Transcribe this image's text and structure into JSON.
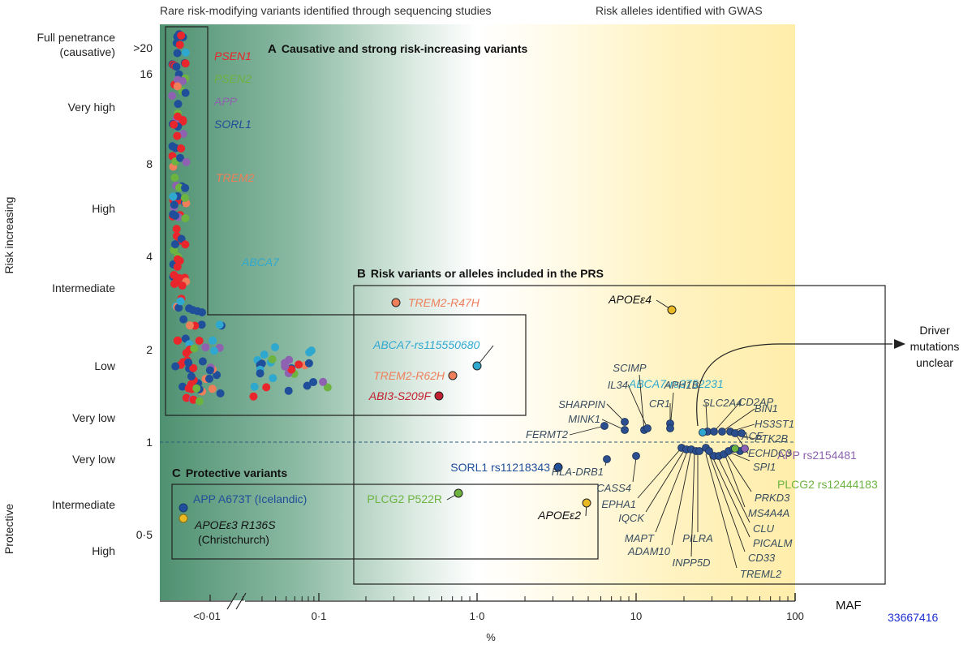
{
  "chart_data": {
    "type": "scatter",
    "xlabel": "%",
    "x_axis_label_right": "MAF",
    "x_ticks": [
      "<0·01",
      "0·1",
      "1·0",
      "10",
      "100"
    ],
    "y_left_label_top": "Risk increasing",
    "y_left_label_bottom": "Protective",
    "y_ticks": [
      "0·5",
      "1",
      "2",
      "4",
      "8",
      "16",
      ">20"
    ],
    "y_categories": [
      "Full penetrance\n(causative)",
      "Very high",
      "High",
      "Intermediate",
      "Low",
      "Very low",
      "Very low",
      "Intermediate",
      "High"
    ],
    "header_left": "Rare risk-modifying variants identified through sequencing studies",
    "header_right": "Risk alleles identified with GWAS",
    "panel_a": {
      "letter": "A",
      "title": "Causative and strong risk-increasing variants"
    },
    "panel_b": {
      "letter": "B",
      "title": "Risk variants or alleles included in the PRS"
    },
    "panel_c": {
      "letter": "C",
      "title": "Protective variants"
    },
    "gene_legend": [
      {
        "name": "PSEN1",
        "color": "#e8262b"
      },
      {
        "name": "PSEN2",
        "color": "#6cb33f"
      },
      {
        "name": "APP",
        "color": "#8e62b0"
      },
      {
        "name": "SORL1",
        "color": "#1f4e9a"
      },
      {
        "name": "TREM2",
        "color": "#ef7f5b"
      },
      {
        "name": "ABCA7",
        "color": "#2ea8cf"
      }
    ],
    "labeled_variants": [
      {
        "label": "TREM2-R47H",
        "x": 0.3,
        "y": 2.7,
        "color": "#ef7f5b"
      },
      {
        "label": "ABCA7-rs115550680",
        "x": 1.0,
        "y": 1.75,
        "color": "#2ea8cf"
      },
      {
        "label": "TREM2-R62H",
        "x": 0.7,
        "y": 1.65,
        "color": "#ef7f5b"
      },
      {
        "label": "ABI3-S209F",
        "x": 0.55,
        "y": 1.42,
        "color": "#c22030"
      },
      {
        "label": "APOEε4",
        "x": 16.5,
        "y": 2.6,
        "color": "#e8b923"
      },
      {
        "label": "SORL1 rs11218343",
        "x": 3.2,
        "y": 0.79,
        "color": "#1f4e9a"
      },
      {
        "label": "PLCG2 P522R",
        "x": 0.75,
        "y": 0.67,
        "color": "#6cb33f"
      },
      {
        "label": "APOEε2",
        "x": 4.9,
        "y": 0.62,
        "color": "#e8b923"
      },
      {
        "label": "ABCA7-rs3752231",
        "x": 25,
        "y": 1.18,
        "color": "#2ea8cf"
      },
      {
        "label": "APP rs2154481",
        "x": 43,
        "y": 0.92,
        "color": "#8e62b0"
      },
      {
        "label": "PLCG2 rs12444183",
        "x": 40,
        "y": 0.93,
        "color": "#6cb33f"
      }
    ],
    "gwas_upper_labels": [
      "CD2AP",
      "SLC2A4",
      "BIN1",
      "HS3ST1",
      "PTK2B",
      "ECHDC3",
      "ACE",
      "SCIMP",
      "IL34",
      "APH1B",
      "CR1",
      "SHARPIN",
      "MINK1",
      "FERMT2"
    ],
    "gwas_lower_labels": [
      "SPI1",
      "PRKD3",
      "MS4A4A",
      "CLU",
      "PICALM",
      "CD33",
      "TREML2",
      "PILRA",
      "INPP5D",
      "ADAM10",
      "MAPT",
      "IQCK",
      "EPHA1",
      "CASS4",
      "HLA-DRB1"
    ],
    "protective_variants": [
      {
        "label": "APP A673T (Icelandic)",
        "color": "#1f4e9a"
      },
      {
        "label": "APOEε3 R136S",
        "sublabel": "(Christchurch)",
        "color": "#e8b923"
      }
    ],
    "driver_note": "Driver\nmutations\nunclear",
    "reference_line_y": 1,
    "x_scale": "log",
    "y_scale": "log"
  },
  "footer_id": "33667416",
  "colors": {
    "rare_bg": "#4d8f72",
    "gwas_bg": "#fff2b8",
    "label_gwas": "#3a4e60",
    "footer": "#1a2fd0"
  }
}
